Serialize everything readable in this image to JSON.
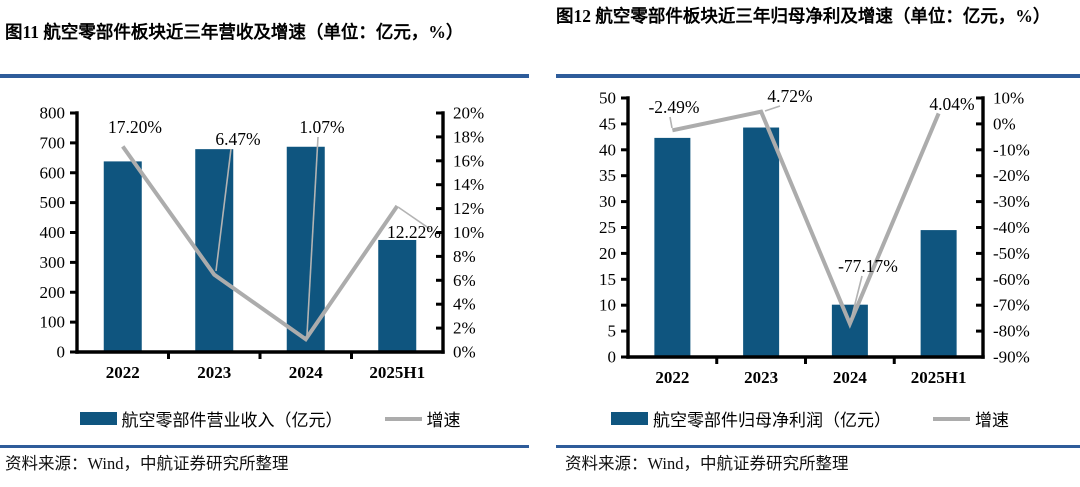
{
  "colors": {
    "bar": "#0F557F",
    "growth_line": "#ACACAC",
    "leader_line": "#B3B3B3",
    "divider": "#2E5C9A",
    "axis": "#000000"
  },
  "sources": [
    "资料来源：Wind，中航证券研究所整理",
    "资料来源：Wind，中航证券研究所整理"
  ],
  "chart_data": [
    {
      "type": "bar",
      "title": "图11 航空零部件板块近三年营收及增速（单位：亿元，%）",
      "categories": [
        "2022",
        "2023",
        "2024",
        "2025H1"
      ],
      "series": [
        {
          "name": "航空零部件营业收入（亿元）",
          "type": "bar",
          "axis": "left",
          "values": [
            638,
            679,
            687,
            375
          ]
        },
        {
          "name": "增速",
          "type": "line",
          "axis": "right",
          "values": [
            17.2,
            6.47,
            1.07,
            12.22
          ],
          "point_labels": [
            "17.20%",
            "6.47%",
            "1.07%",
            "12.22%"
          ]
        }
      ],
      "left_axis": {
        "min": 0,
        "max": 800,
        "step": 100,
        "tick_labels": [
          "0",
          "100",
          "200",
          "300",
          "400",
          "500",
          "600",
          "700",
          "800"
        ]
      },
      "right_axis": {
        "min": 0,
        "max": 20,
        "step": 2,
        "tick_labels": [
          "0%",
          "2%",
          "4%",
          "6%",
          "8%",
          "10%",
          "12%",
          "14%",
          "16%",
          "18%",
          "20%"
        ]
      },
      "grid": false,
      "legend_position": "bottom"
    },
    {
      "type": "bar",
      "title": "图12 航空零部件板块近三年归母净利及增速（单位：亿元，%）",
      "categories": [
        "2022",
        "2023",
        "2024",
        "2025H1"
      ],
      "series": [
        {
          "name": "航空零部件归母净利润（亿元）",
          "type": "bar",
          "axis": "left",
          "values": [
            42.3,
            44.3,
            10.1,
            24.5
          ]
        },
        {
          "name": "增速",
          "type": "line",
          "axis": "right",
          "values": [
            -2.49,
            4.72,
            -77.17,
            4.04
          ],
          "point_labels": [
            "-2.49%",
            "4.72%",
            "-77.17%",
            "4.04%"
          ]
        }
      ],
      "left_axis": {
        "min": 0,
        "max": 50,
        "step": 5,
        "tick_labels": [
          "0",
          "5",
          "10",
          "15",
          "20",
          "25",
          "30",
          "35",
          "40",
          "45",
          "50"
        ]
      },
      "right_axis": {
        "min": -90,
        "max": 10,
        "step": 10,
        "tick_labels": [
          "-90%",
          "-80%",
          "-70%",
          "-60%",
          "-50%",
          "-40%",
          "-30%",
          "-20%",
          "-10%",
          "0%",
          "10%"
        ]
      },
      "grid": false,
      "legend_position": "bottom"
    }
  ]
}
